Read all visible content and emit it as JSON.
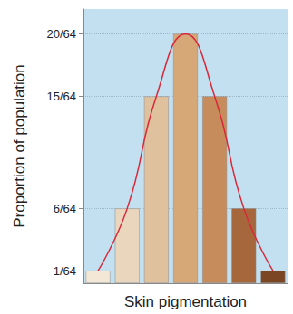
{
  "chart_data": {
    "type": "bar",
    "x_label": "Skin pigmentation",
    "y_label": "Proportion of population",
    "categories": [
      null,
      null,
      null,
      null,
      null,
      null,
      null
    ],
    "series": [
      {
        "type": "bar",
        "colors": [
          "#f3e7d6",
          "#ead6bd",
          "#e0c19e",
          "#d6a877",
          "#c78c5b",
          "#a6673c",
          "#7b4624"
        ],
        "values": [
          0.015625,
          0.09375,
          0.234375,
          0.3125,
          0.234375,
          0.09375,
          0.015625
        ]
      },
      {
        "type": "line",
        "color": "#d9283a",
        "line_style": "solid",
        "values": [
          0.015625,
          0.09375,
          0.234375,
          0.3125,
          0.234375,
          0.09375,
          0.015625
        ]
      }
    ],
    "ylim": [
      0,
      0.34375
    ],
    "yticks": [
      {
        "value": 0.015625,
        "label": "1/64"
      },
      {
        "value": 0.09375,
        "label": "6/64"
      },
      {
        "value": 0.234375,
        "label": "15/64"
      },
      {
        "value": 0.3125,
        "label": "20/64"
      }
    ],
    "grid": true,
    "tick_labels": "y"
  }
}
